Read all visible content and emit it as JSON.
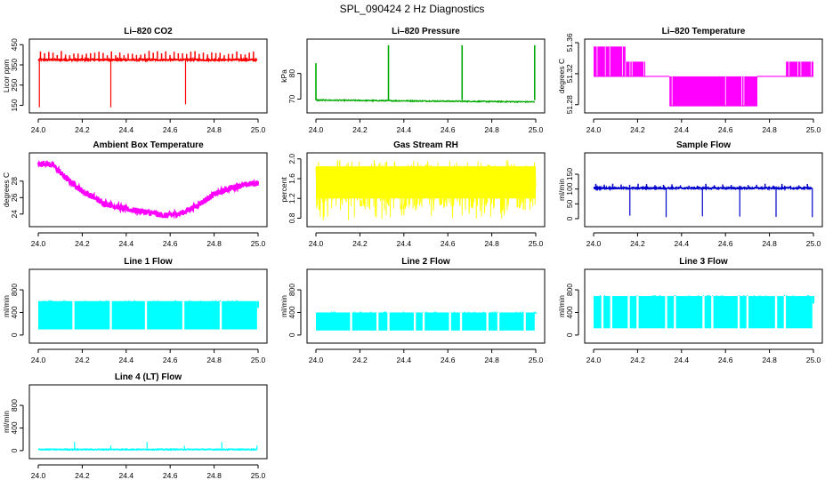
{
  "figure_title": "SPL_090424  2 Hz Diagnostics",
  "chart_data": [
    {
      "type": "line",
      "title": "Li–820 CO2",
      "ylabel": "Licor ppm",
      "color": "#ff0000",
      "xlim": [
        24.0,
        25.0
      ],
      "xticks": [
        "24.0",
        "24.2",
        "24.4",
        "24.6",
        "24.8",
        "25.0"
      ],
      "ylim": [
        130,
        460
      ],
      "yticks": [
        "150",
        "250",
        "350",
        "450"
      ],
      "pattern": "baseline-spikes",
      "series": [
        {
          "name": "CO2",
          "baseline": 375,
          "noise": 4,
          "x_start": 24.0,
          "x_end": 24.995,
          "spike_every": 0.019,
          "spike_height": 420,
          "drop_x": [
            24.005,
            24.33,
            24.67
          ],
          "drop_to": [
            140,
            140,
            155
          ]
        }
      ]
    },
    {
      "type": "line",
      "title": "Li–820 Pressure",
      "ylabel": "kPa",
      "color": "#00aa00",
      "xlim": [
        24.0,
        25.0
      ],
      "xticks": [
        "24.0",
        "24.2",
        "24.4",
        "24.6",
        "24.8",
        "25.0"
      ],
      "ylim": [
        66,
        92
      ],
      "yticks": [
        "70",
        "80"
      ],
      "pattern": "flat-spikes",
      "series": [
        {
          "name": "Pressure",
          "start": 69.6,
          "end": 68.9,
          "noise": 0.2,
          "x_start": 24.0,
          "x_end": 24.995,
          "spike_x": [
            24.0,
            24.33,
            24.665,
            24.995
          ],
          "spike_to": [
            84,
            91,
            91,
            91
          ]
        }
      ]
    },
    {
      "type": "line",
      "title": "Li–820 Temperature",
      "ylabel": "degrees C",
      "color": "#ff00ff",
      "xlim": [
        24.0,
        25.0
      ],
      "xticks": [
        "24.0",
        "24.2",
        "24.4",
        "24.6",
        "24.8",
        "25.0"
      ],
      "ylim": [
        51.274,
        51.36
      ],
      "yticks": [
        "51.28",
        "51.32",
        "51.36"
      ],
      "pattern": "steps",
      "series": [
        {
          "name": "Temperature",
          "segments": [
            {
              "x0": 24.0,
              "x1": 24.145,
              "lo": 51.3165,
              "hi": 51.355
            },
            {
              "x0": 24.145,
              "x1": 24.235,
              "lo": 51.3165,
              "hi": 51.3355
            },
            {
              "x0": 24.235,
              "x1": 24.345,
              "lo": 51.3165,
              "hi": 51.3165
            },
            {
              "x0": 24.345,
              "x1": 24.745,
              "lo": 51.2785,
              "hi": 51.3165
            },
            {
              "x0": 24.745,
              "x1": 24.875,
              "lo": 51.3165,
              "hi": 51.3165
            },
            {
              "x0": 24.875,
              "x1": 25.0,
              "lo": 51.3165,
              "hi": 51.3355
            }
          ]
        }
      ]
    },
    {
      "type": "line",
      "title": "Ambient Box Temperature",
      "ylabel": "degrees C",
      "color": "#ff00ff",
      "xlim": [
        24.0,
        25.0
      ],
      "xticks": [
        "24.0",
        "24.2",
        "24.4",
        "24.6",
        "24.8",
        "25.0"
      ],
      "ylim": [
        22.9,
        31.0
      ],
      "yticks": [
        "24",
        "26",
        "28"
      ],
      "pattern": "curve",
      "series": [
        {
          "name": "Ambient",
          "noise": 0.35,
          "points": [
            [
              24.0,
              30.0
            ],
            [
              24.03,
              30.2
            ],
            [
              24.07,
              29.9
            ],
            [
              24.12,
              28.5
            ],
            [
              24.2,
              26.8
            ],
            [
              24.3,
              25.3
            ],
            [
              24.4,
              24.6
            ],
            [
              24.5,
              24.2
            ],
            [
              24.58,
              23.8
            ],
            [
              24.65,
              24.1
            ],
            [
              24.72,
              25.0
            ],
            [
              24.8,
              26.4
            ],
            [
              24.88,
              27.2
            ],
            [
              24.95,
              27.6
            ],
            [
              25.0,
              27.8
            ]
          ]
        }
      ]
    },
    {
      "type": "line",
      "title": "Gas Stream RH",
      "ylabel": "percent",
      "color": "#ffff00",
      "xlim": [
        24.0,
        25.0
      ],
      "xticks": [
        "24.0",
        "24.2",
        "24.4",
        "24.6",
        "24.8",
        "25.0"
      ],
      "ylim": [
        0.7,
        2.05
      ],
      "yticks": [
        "0.8",
        "1.2",
        "1.6",
        "2.0"
      ],
      "pattern": "noise-band",
      "series": [
        {
          "name": "RH",
          "lo": 0.95,
          "hi": 1.9,
          "lo_tail": 0.75,
          "hi_tail": 2.0
        }
      ]
    },
    {
      "type": "line",
      "title": "Sample Flow",
      "ylabel": "ml/min",
      "color": "#0000cc",
      "xlim": [
        24.0,
        25.0
      ],
      "xticks": [
        "24.0",
        "24.2",
        "24.4",
        "24.6",
        "24.8",
        "25.0"
      ],
      "ylim": [
        -15,
        210
      ],
      "yticks": [
        "0",
        "50",
        "100",
        "150"
      ],
      "pattern": "baseline-spikes",
      "series": [
        {
          "name": "Sample",
          "baseline": 103,
          "noise": 2.5,
          "x_start": 24.0,
          "x_end": 24.995,
          "spike_every": 0.0385,
          "spike_height": 118,
          "drop_x": [
            24.165,
            24.33,
            24.495,
            24.665,
            24.83,
            24.995
          ],
          "drop_to": [
            10,
            5,
            8,
            7,
            6,
            5
          ]
        }
      ]
    },
    {
      "type": "line",
      "title": "Line 1 Flow",
      "ylabel": "ml/min",
      "color": "#00ffff",
      "xlim": [
        24.0,
        25.0
      ],
      "xticks": [
        "24.0",
        "24.2",
        "24.4",
        "24.6",
        "24.8",
        "25.0"
      ],
      "ylim": [
        -80,
        1100
      ],
      "yticks": [
        "0",
        "400",
        "800"
      ],
      "pattern": "flow-block",
      "series": [
        {
          "name": "Line 1",
          "lo": 100,
          "hi": 600,
          "gaps": [
            24.16,
            24.33,
            24.49,
            24.66,
            24.83
          ],
          "end_to": 480
        }
      ]
    },
    {
      "type": "line",
      "title": "Line 2 Flow",
      "ylabel": "ml/min",
      "color": "#00ffff",
      "xlim": [
        24.0,
        25.0
      ],
      "xticks": [
        "24.0",
        "24.2",
        "24.4",
        "24.6",
        "24.8",
        "25.0"
      ],
      "ylim": [
        -80,
        1100
      ],
      "yticks": [
        "0",
        "400",
        "800"
      ],
      "pattern": "flow-block",
      "series": [
        {
          "name": "Line 2",
          "lo": 80,
          "hi": 400,
          "gaps": [
            24.16,
            24.28,
            24.33,
            24.45,
            24.49,
            24.61,
            24.66,
            24.78,
            24.83,
            24.95
          ],
          "end_to": 380
        }
      ]
    },
    {
      "type": "line",
      "title": "Line 3 Flow",
      "ylabel": "ml/min",
      "color": "#00ffff",
      "xlim": [
        24.0,
        25.0
      ],
      "xticks": [
        "24.0",
        "24.2",
        "24.4",
        "24.6",
        "24.8",
        "25.0"
      ],
      "ylim": [
        -80,
        1100
      ],
      "yticks": [
        "0",
        "400",
        "800"
      ],
      "pattern": "flow-block",
      "series": [
        {
          "name": "Line 3",
          "lo": 120,
          "hi": 690,
          "gaps": [
            24.04,
            24.08,
            24.16,
            24.2,
            24.33,
            24.37,
            24.5,
            24.54,
            24.66,
            24.7,
            24.83,
            24.87
          ],
          "end_to": 560
        }
      ]
    },
    {
      "type": "line",
      "title": "Line 4 (LT) Flow",
      "ylabel": "ml/min",
      "color": "#00ffff",
      "xlim": [
        24.0,
        25.0
      ],
      "xticks": [
        "24.0",
        "24.2",
        "24.4",
        "24.6",
        "24.8",
        "25.0"
      ],
      "ylim": [
        -80,
        1100
      ],
      "yticks": [
        "0",
        "400",
        "800"
      ],
      "pattern": "baseline-spikes",
      "series": [
        {
          "name": "Line 4",
          "baseline": 20,
          "noise": 6,
          "x_start": 24.0,
          "x_end": 24.995,
          "spike_every": 0,
          "spike_height": 0,
          "drop_x": [],
          "drop_to": [],
          "up_x": [
            24.165,
            24.33,
            24.495,
            24.665,
            24.835,
            24.995
          ],
          "up_to": [
            150,
            90,
            150,
            85,
            150,
            90
          ]
        }
      ]
    }
  ]
}
